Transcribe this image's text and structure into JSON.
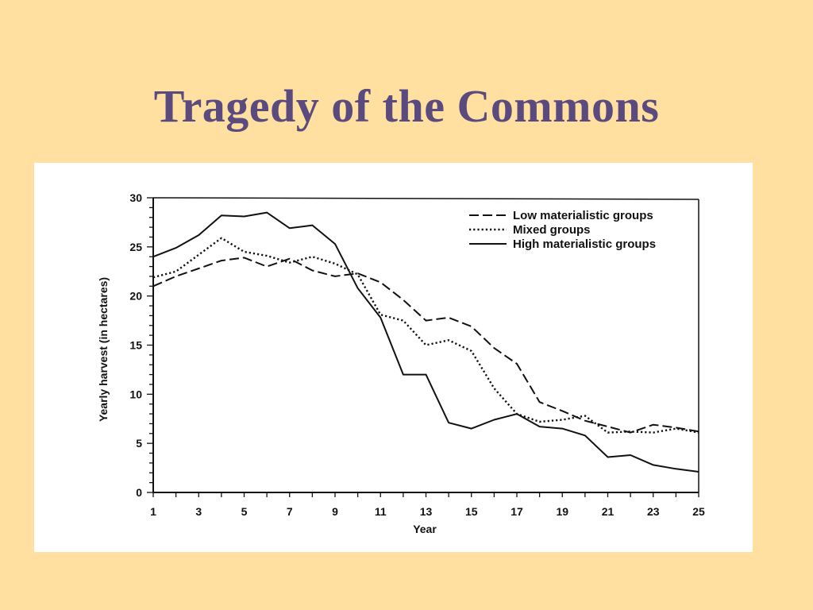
{
  "slide": {
    "title": "Tragedy of the Commons",
    "background": "#FFE0A0",
    "title_color": "#5A4A7E"
  },
  "chart_data": {
    "type": "line",
    "xlabel": "Year",
    "ylabel": "Yearly harvest (in hectares)",
    "xlim": [
      1,
      25
    ],
    "ylim": [
      0,
      30
    ],
    "x_tick_labels": [
      "1",
      "3",
      "5",
      "7",
      "9",
      "11",
      "13",
      "15",
      "17",
      "19",
      "21",
      "23",
      "25"
    ],
    "y_tick_labels": [
      "0",
      "5",
      "10",
      "15",
      "20",
      "25",
      "30"
    ],
    "legend_position": "top-right",
    "x": [
      1,
      2,
      3,
      4,
      5,
      6,
      7,
      8,
      9,
      10,
      11,
      12,
      13,
      14,
      15,
      16,
      17,
      18,
      19,
      20,
      21,
      22,
      23,
      24,
      25
    ],
    "series": [
      {
        "name": "Low materialistic groups",
        "style": "dashed",
        "values": [
          21,
          22,
          22.8,
          23.6,
          23.9,
          23,
          23.8,
          22.6,
          22,
          22.3,
          21.4,
          19.6,
          17.5,
          17.8,
          16.9,
          14.7,
          13.1,
          9.2,
          8.3,
          7.3,
          6.7,
          6.1,
          6.9,
          6.6,
          6.2
        ]
      },
      {
        "name": "Mixed groups",
        "style": "dotted",
        "values": [
          21.9,
          22.5,
          24.2,
          25.9,
          24.5,
          24.1,
          23.4,
          24,
          23.3,
          22.2,
          18.1,
          17.5,
          15,
          15.5,
          14.4,
          10.6,
          8,
          7.2,
          7.4,
          7.8,
          6.1,
          6.2,
          6.1,
          6.5,
          6.1
        ]
      },
      {
        "name": "High materialistic groups",
        "style": "solid",
        "values": [
          24,
          24.9,
          26.2,
          28.2,
          28.1,
          28.5,
          26.9,
          27.2,
          25.3,
          20.8,
          17.8,
          12,
          12,
          7.1,
          6.5,
          7.4,
          8,
          6.7,
          6.5,
          5.8,
          3.6,
          3.8,
          2.8,
          2.4,
          2.1
        ]
      }
    ]
  }
}
